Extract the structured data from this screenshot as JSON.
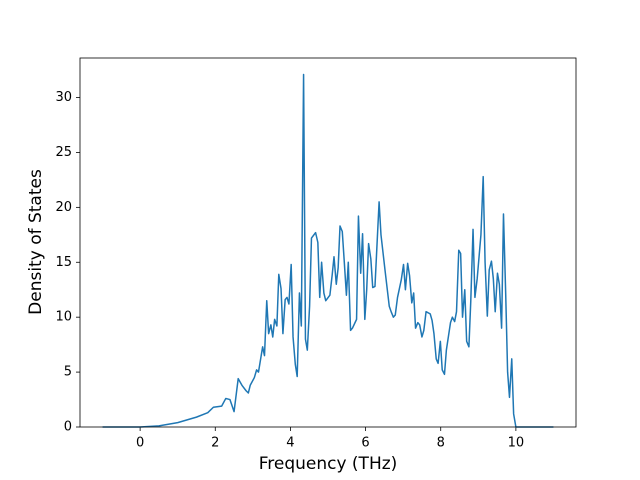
{
  "chart_data": {
    "type": "line",
    "x_label": "Frequency (THz)",
    "y_label": "Density of States",
    "xlim": [
      -1.6,
      11.6
    ],
    "ylim": [
      0,
      33.6
    ],
    "xticks": [
      0,
      2,
      4,
      6,
      8,
      10
    ],
    "yticks": [
      0,
      5,
      10,
      15,
      20,
      25,
      30
    ],
    "grid": false,
    "series": [
      {
        "color": "#1f77b4",
        "x": [
          -1,
          -0.5,
          0,
          0.5,
          1,
          1.5,
          1.8,
          1.95,
          2.17,
          2.28,
          2.39,
          2.5,
          2.61,
          2.71,
          2.82,
          2.88,
          2.93,
          3.04,
          3.1,
          3.15,
          3.26,
          3.31,
          3.37,
          3.42,
          3.48,
          3.53,
          3.58,
          3.64,
          3.69,
          3.75,
          3.8,
          3.86,
          3.91,
          3.96,
          4.02,
          4.07,
          4.13,
          4.18,
          4.24,
          4.29,
          4.35,
          4.4,
          4.45,
          4.51,
          4.56,
          4.67,
          4.73,
          4.78,
          4.83,
          4.89,
          4.94,
          5.05,
          5.11,
          5.16,
          5.22,
          5.27,
          5.32,
          5.38,
          5.43,
          5.49,
          5.54,
          5.6,
          5.65,
          5.76,
          5.81,
          5.87,
          5.92,
          5.98,
          6.03,
          6.08,
          6.14,
          6.19,
          6.25,
          6.36,
          6.41,
          6.52,
          6.63,
          6.68,
          6.74,
          6.79,
          6.85,
          6.95,
          7.01,
          7.06,
          7.12,
          7.17,
          7.23,
          7.28,
          7.33,
          7.39,
          7.44,
          7.5,
          7.55,
          7.61,
          7.72,
          7.77,
          7.82,
          7.88,
          7.93,
          7.99,
          8.04,
          8.1,
          8.15,
          8.26,
          8.31,
          8.37,
          8.42,
          8.48,
          8.53,
          8.58,
          8.64,
          8.69,
          8.75,
          8.8,
          8.86,
          8.91,
          8.97,
          9.07,
          9.13,
          9.18,
          9.24,
          9.29,
          9.35,
          9.4,
          9.45,
          9.51,
          9.56,
          9.62,
          9.67,
          9.73,
          9.78,
          9.83,
          9.89,
          9.94,
          10.0,
          10.1,
          11
        ],
        "values": [
          0,
          0,
          0,
          0.1,
          0.4,
          0.9,
          1.3,
          1.8,
          1.9,
          2.6,
          2.5,
          1.4,
          4.4,
          3.8,
          3.3,
          3.1,
          3.8,
          4.5,
          5.2,
          5.0,
          7.3,
          6.5,
          11.5,
          8.5,
          9.3,
          8.2,
          9.8,
          9.2,
          13.9,
          12.6,
          8.5,
          11.6,
          11.8,
          11.2,
          14.8,
          8.2,
          5.7,
          4.6,
          12.2,
          9.2,
          32.1,
          8.0,
          7.0,
          11.0,
          17.2,
          17.7,
          16.8,
          11.8,
          15.0,
          12.2,
          11.5,
          12.0,
          13.8,
          15.5,
          13.0,
          14.5,
          18.3,
          17.8,
          15.2,
          12.0,
          15.0,
          8.8,
          9.0,
          9.8,
          19.2,
          14.0,
          17.6,
          9.8,
          12.5,
          16.7,
          15.3,
          12.7,
          12.8,
          20.5,
          17.5,
          14.2,
          11.0,
          10.5,
          10.0,
          10.2,
          11.8,
          13.4,
          14.8,
          12.5,
          14.9,
          13.8,
          11.3,
          12.2,
          9.0,
          9.5,
          9.3,
          8.2,
          8.8,
          10.5,
          10.3,
          9.7,
          8.5,
          6.2,
          5.8,
          7.8,
          5.2,
          4.8,
          7.0,
          9.5,
          10.0,
          9.6,
          10.5,
          16.1,
          15.8,
          10.0,
          12.5,
          7.8,
          7.3,
          11.5,
          18.0,
          11.8,
          13.5,
          17.5,
          22.8,
          15.0,
          10.1,
          14.3,
          15.1,
          13.5,
          10.5,
          14.0,
          13.0,
          9.0,
          19.4,
          12.0,
          5.0,
          2.7,
          6.2,
          1.2,
          0,
          0,
          0
        ]
      }
    ]
  }
}
